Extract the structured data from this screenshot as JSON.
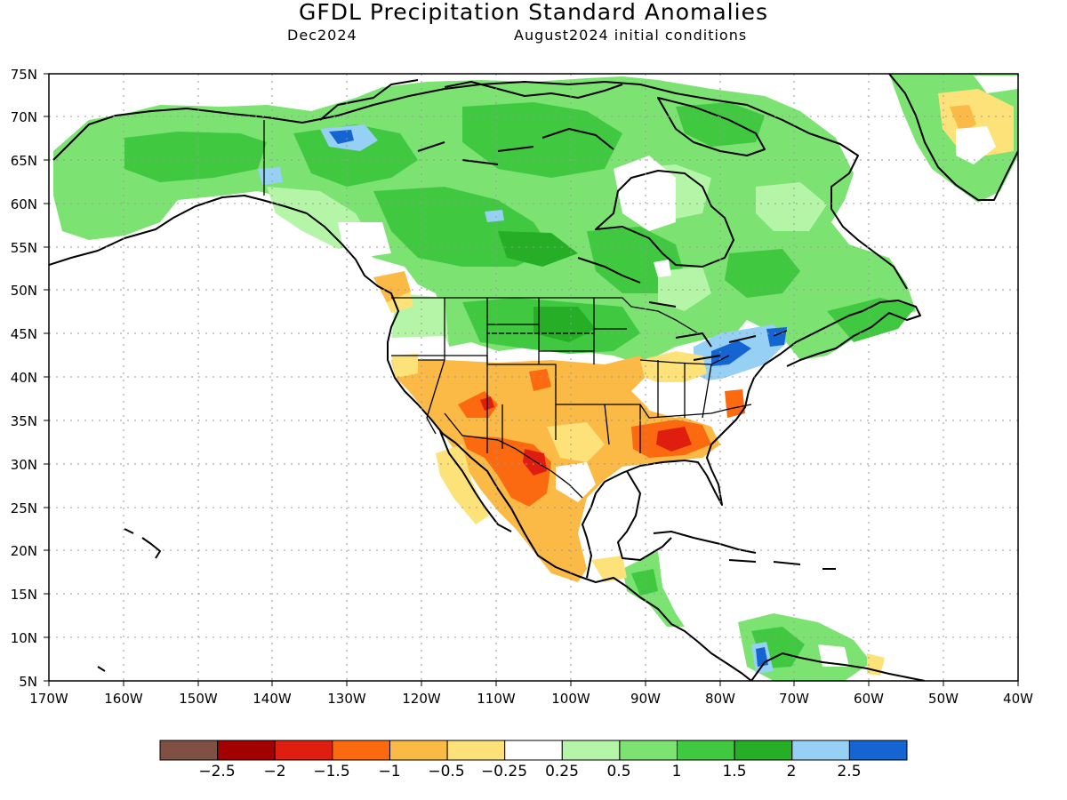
{
  "header": {
    "title": "GFDL Precipitation Standard Anomalies",
    "target_month": "Dec2024",
    "init": "August2024 initial conditions"
  },
  "axes": {
    "lat_labels": [
      "75N",
      "70N",
      "65N",
      "60N",
      "55N",
      "50N",
      "45N",
      "40N",
      "35N",
      "30N",
      "25N",
      "20N",
      "15N",
      "10N",
      "5N"
    ],
    "lon_labels": [
      "170W",
      "160W",
      "150W",
      "140W",
      "130W",
      "120W",
      "110W",
      "100W",
      "90W",
      "80W",
      "70W",
      "60W",
      "50W",
      "40W"
    ]
  },
  "map_extent": {
    "lon": [
      -170,
      -40
    ],
    "lat": [
      5,
      75
    ]
  },
  "colorbar": {
    "colors": [
      "#7f5043",
      "#a30000",
      "#e01e10",
      "#fb6a10",
      "#fbb945",
      "#fde27a",
      "#ffffff",
      "#b4f5a8",
      "#7ce272",
      "#41c841",
      "#27ae27",
      "#96d0f5",
      "#1464d2"
    ],
    "labels": [
      "-2.5",
      "-2",
      "-1.5",
      "-1",
      "-0.5",
      "-0.25",
      "0.25",
      "0.5",
      "1",
      "1.5",
      "2",
      "2.5"
    ]
  }
}
